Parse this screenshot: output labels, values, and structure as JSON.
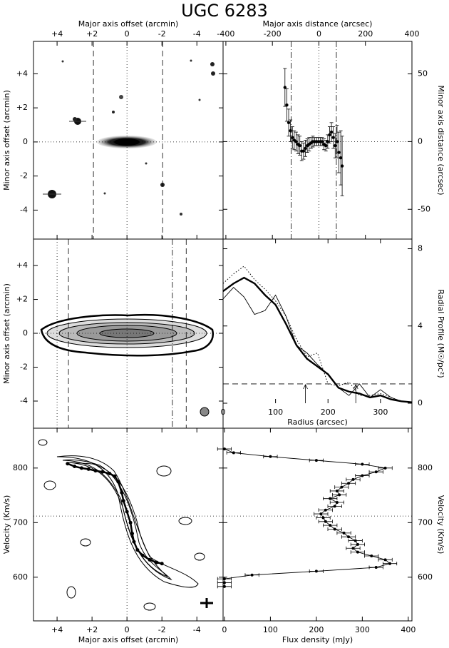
{
  "chart_data": [
    {
      "type": "image",
      "title": "UGC 6283",
      "xlabel": "Major axis offset (arcmin)",
      "ylabel": "Minor axis offset (arcmin)",
      "xlim": [
        5.35,
        -5.5
      ],
      "ylim": [
        -5.7,
        5.9
      ],
      "xticks": [
        {
          "value": 4,
          "label": "+4"
        },
        {
          "value": 2,
          "label": "+2"
        },
        0,
        -2,
        -4
      ],
      "yticks": [
        {
          "value": 4,
          "label": "+4"
        },
        {
          "value": 2,
          "label": "+2"
        },
        0,
        -2,
        -4
      ],
      "xaxis_position": "top",
      "yaxis_position": "left",
      "ref_lines": [
        {
          "axis": "x",
          "value": 0,
          "style": "dotted"
        },
        {
          "axis": "y",
          "value": 0,
          "style": "dotted"
        },
        {
          "axis": "x",
          "value": 1.92,
          "style": "dashed"
        },
        {
          "axis": "x",
          "value": -2.04,
          "style": "dashed"
        }
      ]
    },
    {
      "type": "errorbar",
      "xlabel": "Major axis distance (arcsec)",
      "ylabel": "Minor axis distance (arcsec)",
      "xlim": [
        -412,
        400
      ],
      "ylim": [
        -72,
        74
      ],
      "xticks": [
        -400,
        -200,
        0,
        200,
        400
      ],
      "yticks": [
        -50,
        0,
        50
      ],
      "xaxis_position": "top",
      "yaxis_position": "right",
      "x": [
        -146,
        -138,
        -130,
        -122,
        -114,
        -106,
        -98,
        -90,
        -82,
        -74,
        -66,
        -58,
        -50,
        -42,
        -34,
        -26,
        -18,
        -10,
        -2,
        6,
        14,
        22,
        30,
        38,
        46,
        54,
        62,
        70,
        78,
        86,
        94,
        100
      ],
      "values": [
        40,
        27,
        14,
        8,
        3,
        1,
        0,
        -2,
        -3,
        -7,
        -7,
        -5,
        -3,
        -2,
        -1,
        0,
        0,
        0,
        0,
        0,
        0,
        -2,
        -3,
        0,
        5,
        7,
        3,
        -3,
        0,
        -8,
        -12,
        -18
      ],
      "errors": [
        14,
        12,
        10,
        8,
        8,
        7,
        7,
        7,
        7,
        7,
        6,
        6,
        5,
        5,
        4,
        4,
        3,
        3,
        3,
        3,
        3,
        4,
        4,
        5,
        6,
        7,
        8,
        9,
        12,
        15,
        20,
        22
      ],
      "color": "#000000",
      "ref_lines": [
        {
          "axis": "x",
          "value": -119,
          "style": "dashdot"
        },
        {
          "axis": "x",
          "value": 0,
          "style": "dotted"
        },
        {
          "axis": "x",
          "value": 75,
          "style": "dashdot"
        },
        {
          "axis": "y",
          "value": 0,
          "style": "dotted"
        }
      ]
    },
    {
      "type": "contour",
      "ylabel": "Minor axis offset (arcmin)",
      "xlim": [
        5.35,
        -5.5
      ],
      "ylim": [
        -5.6,
        5.56
      ],
      "yticks": [
        {
          "value": 4,
          "label": "+4"
        },
        {
          "value": 2,
          "label": "+2"
        },
        0,
        -2,
        -4
      ],
      "yaxis_position": "left",
      "ref_lines": [
        {
          "axis": "x",
          "value": 4,
          "style": "dotted"
        },
        {
          "axis": "x",
          "value": 3.35,
          "style": "dashed"
        },
        {
          "axis": "x",
          "value": 0,
          "style": "dotted"
        },
        {
          "axis": "x",
          "value": -2.6,
          "style": "dashdot"
        },
        {
          "axis": "x",
          "value": -3.39,
          "style": "dashed"
        },
        {
          "axis": "y",
          "value": 0,
          "style": "dotted"
        }
      ]
    },
    {
      "type": "line",
      "xlabel": "Radius (arcsec)",
      "ylabel": "Radial Profile (M☉/pc²)",
      "xlim": [
        0,
        360
      ],
      "ylim": [
        0,
        8.5
      ],
      "xticks": [
        0,
        100,
        200,
        300
      ],
      "yticks": [
        0,
        4,
        8
      ],
      "xaxis_position": "bottom",
      "yaxis_position": "right",
      "x": [
        0,
        20,
        40,
        60,
        80,
        100,
        120,
        140,
        160,
        180,
        200,
        220,
        240,
        260,
        280,
        300,
        320,
        340,
        360
      ],
      "series": [
        {
          "style": "thick",
          "color": "#000000",
          "values": [
            5.8,
            6.2,
            6.5,
            6.2,
            5.6,
            5.1,
            4.1,
            3.0,
            2.3,
            1.9,
            1.5,
            0.8,
            0.6,
            0.5,
            0.3,
            0.4,
            0.2,
            0.1,
            0.05
          ]
        },
        {
          "style": "thin",
          "color": "#000000",
          "values": [
            5.4,
            6.0,
            5.5,
            4.6,
            4.8,
            5.6,
            4.5,
            3.0,
            2.6,
            2.0,
            1.5,
            0.8,
            0.4,
            1.0,
            0.3,
            0.7,
            0.3,
            0.1,
            0.05
          ]
        },
        {
          "style": "dotted",
          "color": "#000000",
          "values": [
            6.2,
            6.7,
            7.1,
            6.4,
            5.9,
            5.3,
            4.5,
            3.3,
            2.4,
            2.6,
            1.0,
            0.9,
            1.1,
            0.4,
            0.4,
            0.5,
            0.3,
            0.1,
            0.05
          ]
        }
      ],
      "arrows": [
        157,
        253
      ],
      "ref_lines": [
        {
          "axis": "y",
          "value": 1.0,
          "style": "dashed"
        }
      ]
    },
    {
      "type": "pv",
      "xlabel": "Major axis offset (arcmin)",
      "ylabel": "Velocity (Km/s)",
      "xlim": [
        5.35,
        -5.5
      ],
      "ylim": [
        520,
        873
      ],
      "xticks": [
        {
          "value": 4,
          "label": "+4"
        },
        {
          "value": 2,
          "label": "+2"
        },
        0,
        -2,
        -4
      ],
      "yticks": [
        600,
        700,
        800
      ],
      "xaxis_position": "bottom",
      "yaxis_position": "left",
      "x": [
        3.4,
        3.0,
        2.6,
        2.2,
        1.8,
        1.4,
        1.0,
        0.7,
        0.5,
        0.3,
        0.2,
        0.0,
        -0.2,
        -0.3,
        -0.4,
        -0.6,
        -0.9,
        -1.3,
        -1.7,
        -2.0
      ],
      "values": [
        808,
        803,
        800,
        798,
        795,
        793,
        790,
        785,
        775,
        755,
        740,
        720,
        700,
        680,
        665,
        650,
        640,
        632,
        627,
        625
      ],
      "color": "#000000",
      "ref_lines": [
        {
          "axis": "x",
          "value": 0,
          "style": "dotted"
        },
        {
          "axis": "y",
          "value": 712,
          "style": "dotted"
        }
      ]
    },
    {
      "type": "spectrum",
      "xlabel": "Flux density (mJy)",
      "ylabel": "Velocity (Km/s)",
      "xlim": [
        -3,
        408
      ],
      "ylim": [
        520,
        873
      ],
      "xticks": [
        0,
        100,
        200,
        300,
        400
      ],
      "yticks": [
        600,
        700,
        800
      ],
      "xaxis_position": "bottom",
      "yaxis_position": "right",
      "y": [
        583,
        590,
        597,
        604,
        611,
        618,
        625,
        632,
        639,
        646,
        653,
        660,
        667,
        674,
        681,
        688,
        695,
        702,
        709,
        716,
        723,
        730,
        737,
        744,
        751,
        758,
        765,
        772,
        779,
        786,
        793,
        800,
        807,
        814,
        821,
        828,
        835
      ],
      "values": [
        0,
        0,
        0,
        60,
        200,
        330,
        360,
        350,
        320,
        290,
        280,
        290,
        285,
        270,
        260,
        240,
        230,
        220,
        215,
        210,
        220,
        240,
        245,
        230,
        250,
        245,
        255,
        270,
        280,
        300,
        330,
        350,
        300,
        200,
        100,
        20,
        0
      ],
      "error": 15,
      "color": "#000000",
      "ref_lines": [
        {
          "axis": "y",
          "value": 712,
          "style": "dotted"
        }
      ]
    }
  ]
}
